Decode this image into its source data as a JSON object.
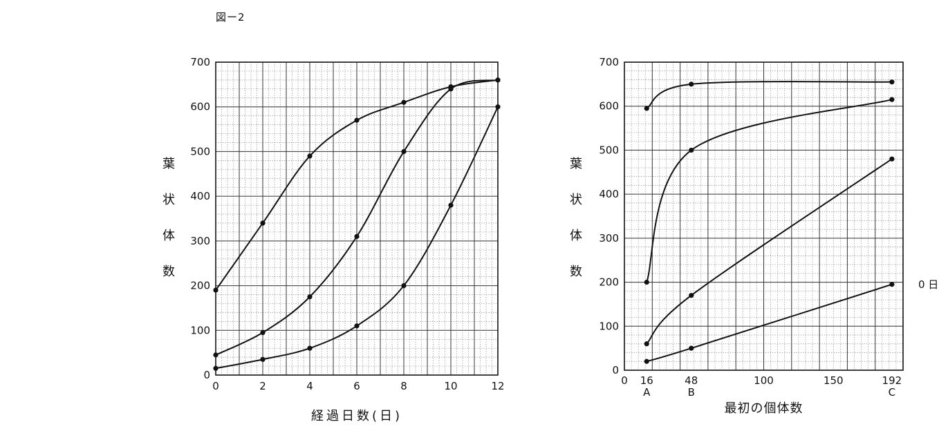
{
  "figure_label": "図ー2",
  "chart_data": [
    {
      "type": "line",
      "xlabel": "経過日数(日)",
      "ylabel": "葉状体数",
      "xlim": [
        0,
        12
      ],
      "ylim": [
        0,
        700
      ],
      "x_ticks": [
        "0",
        "2",
        "4",
        "6",
        "8",
        "10",
        "12"
      ],
      "y_ticks": [
        "0",
        "100",
        "200",
        "300",
        "400",
        "500",
        "600",
        "700"
      ],
      "grid": true,
      "series": [
        {
          "x": [
            0,
            2,
            4,
            6,
            8,
            10,
            12
          ],
          "values": [
            190,
            340,
            490,
            570,
            610,
            645,
            660
          ]
        },
        {
          "x": [
            0,
            2,
            4,
            6,
            8,
            10,
            12
          ],
          "values": [
            45,
            95,
            175,
            310,
            500,
            640,
            660
          ]
        },
        {
          "x": [
            0,
            2,
            4,
            6,
            8,
            10,
            12
          ],
          "values": [
            15,
            35,
            60,
            110,
            200,
            380,
            600
          ]
        }
      ]
    },
    {
      "type": "line",
      "xlabel": "最初の個体数",
      "ylabel": "葉状体数",
      "xlim": [
        0,
        200
      ],
      "ylim": [
        0,
        700
      ],
      "x_ticks": [
        "0",
        "16",
        "48",
        "100",
        "150",
        "192"
      ],
      "y_ticks": [
        "0",
        "100",
        "200",
        "300",
        "400",
        "500",
        "600",
        "700"
      ],
      "x_point_labels": [
        {
          "x": 16,
          "label": "A"
        },
        {
          "x": 48,
          "label": "B"
        },
        {
          "x": 192,
          "label": "C"
        }
      ],
      "grid": true,
      "annotations": [
        {
          "text": "0 日",
          "attached_to_series": 3
        }
      ],
      "series": [
        {
          "x": [
            16,
            48,
            192
          ],
          "values": [
            595,
            650,
            655
          ]
        },
        {
          "x": [
            16,
            48,
            192
          ],
          "values": [
            200,
            500,
            615
          ]
        },
        {
          "x": [
            16,
            48,
            192
          ],
          "values": [
            60,
            170,
            480
          ]
        },
        {
          "x": [
            16,
            48,
            192
          ],
          "values": [
            20,
            50,
            195
          ]
        }
      ]
    }
  ]
}
